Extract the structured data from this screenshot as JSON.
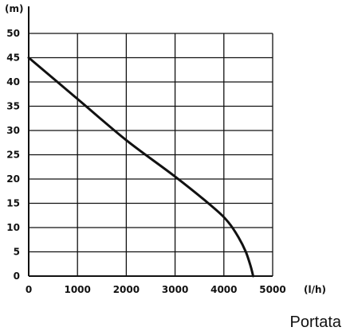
{
  "chart_data": {
    "type": "line",
    "title": "",
    "xlabel": "Portata",
    "ylabel": "",
    "x_unit": "(l/h)",
    "y_unit": "(m)",
    "xlim": [
      0,
      5000
    ],
    "ylim": [
      0,
      50
    ],
    "x_ticks": [
      "0",
      "1000",
      "2000",
      "3000",
      "4000",
      "5000"
    ],
    "y_ticks": [
      "0",
      "5",
      "10",
      "15",
      "20",
      "25",
      "30",
      "35",
      "40",
      "45",
      "50"
    ],
    "grid": true,
    "series": [
      {
        "x": [
          0,
          1000,
          2000,
          3000,
          3800,
          4100,
          4300,
          4450,
          4550,
          4600
        ],
        "y": [
          45,
          36.5,
          28,
          20.5,
          14,
          11,
          8,
          5,
          2,
          0
        ],
        "color": "#111111"
      }
    ]
  }
}
